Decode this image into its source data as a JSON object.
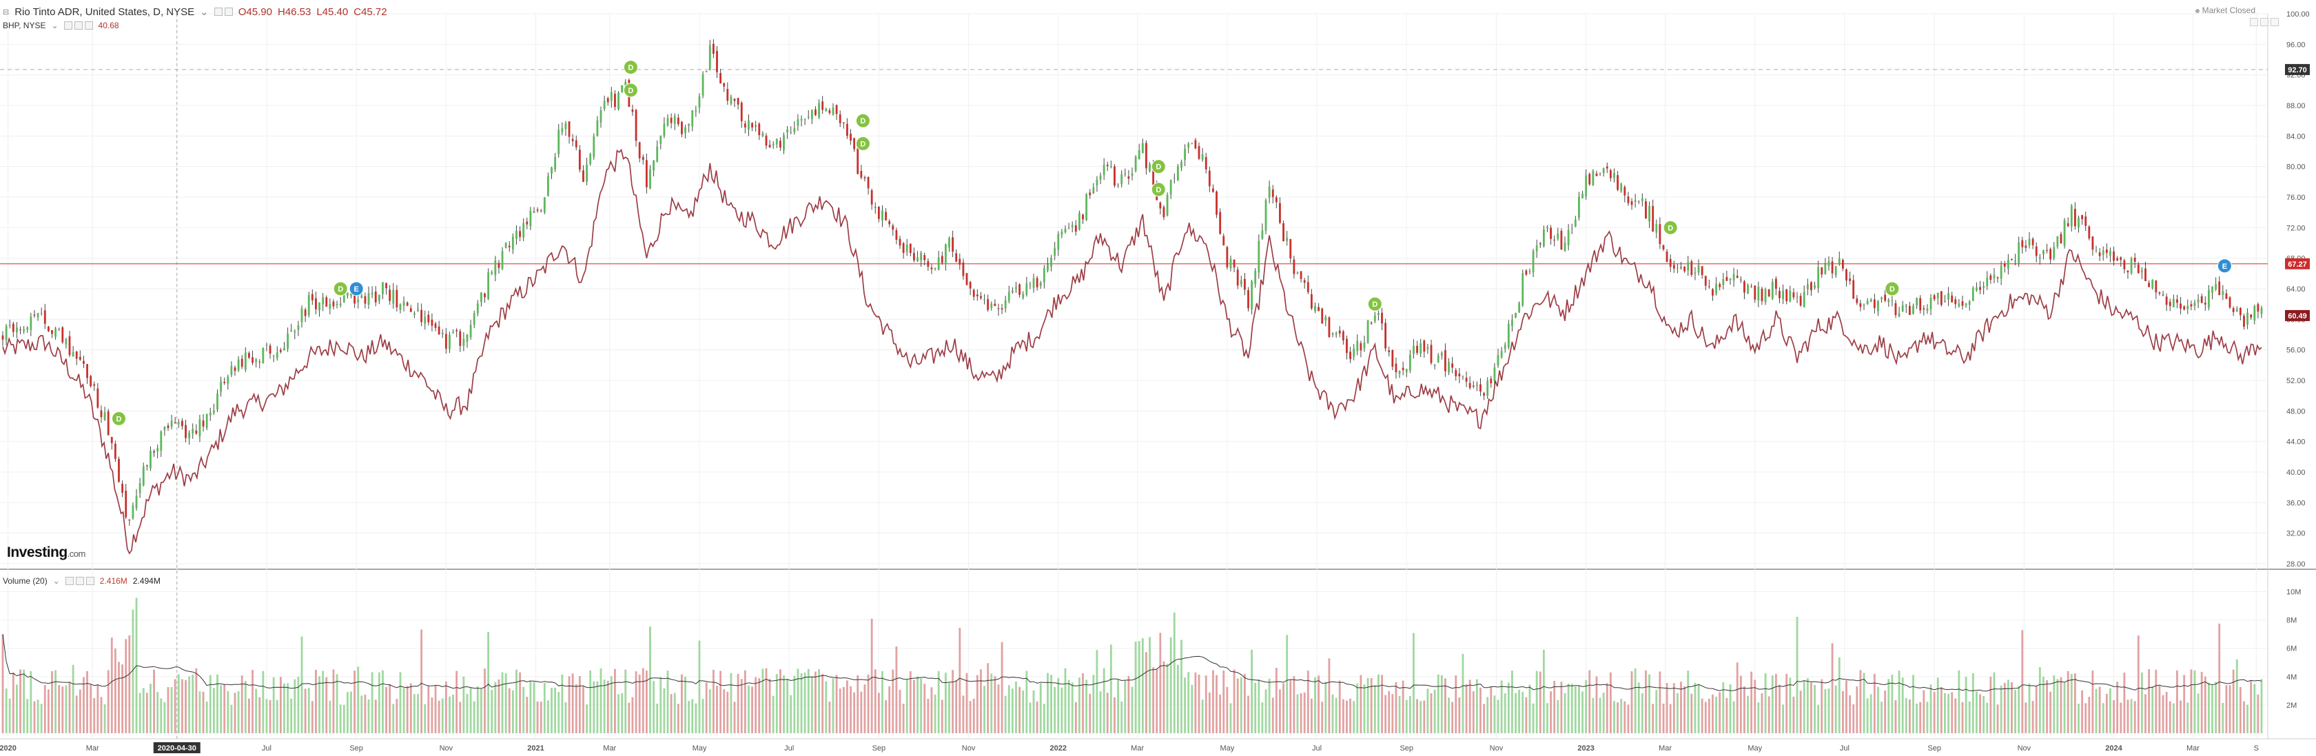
{
  "header": {
    "main_legend": {
      "title": "Rio Tinto ADR, United States, D, NYSE",
      "open": "O45.90",
      "high": "H46.53",
      "low": "L45.40",
      "close": "C45.72"
    },
    "compare_legend": {
      "title": "BHP, NYSE",
      "value": "40.68"
    },
    "market_status": "Market Closed"
  },
  "volume_legend": {
    "title": "Volume (20)",
    "value1": "2.416M",
    "value2": "2.494M"
  },
  "logo": {
    "text": "Investing",
    "suffix": ".com"
  },
  "colors": {
    "up": "#5cb85c",
    "down": "#c9302c",
    "vol_up": "#9fd89f",
    "vol_down": "#e2a1a1",
    "compare_line": "#9c3d45",
    "hline": "#e05252",
    "price_tag_dark": "#333333",
    "price_tag_red": "#cc2d2d",
    "dividend": "#84c341",
    "earnings": "#2f8fd6"
  },
  "chart_data": {
    "type": "line",
    "title": "",
    "ylim": [
      28,
      100
    ],
    "y_ticks": [
      "100.00",
      "96.00",
      "92.00",
      "88.00",
      "84.00",
      "80.00",
      "76.00",
      "72.00",
      "68.00",
      "64.00",
      "60.00",
      "56.00",
      "52.00",
      "48.00",
      "44.00",
      "40.00",
      "36.00",
      "32.00",
      "28.00"
    ],
    "x_labels": [
      "2020",
      "Mar",
      "2020-04-30",
      "Jul",
      "Sep",
      "Nov",
      "2021",
      "Mar",
      "May",
      "Jul",
      "Sep",
      "Nov",
      "2022",
      "Mar",
      "May",
      "Jul",
      "Sep",
      "Nov",
      "2023",
      "Mar",
      "May",
      "Jul",
      "Sep",
      "Nov",
      "2024",
      "Mar",
      "S"
    ],
    "x_label_idx": [
      0.5,
      8.5,
      16.5,
      25,
      33.5,
      42,
      50.5,
      57.5,
      66,
      74.5,
      83,
      91.5,
      100,
      107.5,
      116,
      124.5,
      133,
      141.5,
      150,
      157.5,
      166,
      174.5,
      183,
      191.5,
      200,
      207.5,
      213.5
    ],
    "n_weeks": 215,
    "price_labels": {
      "ref_dashed": "92.70",
      "hline": "67.27",
      "last": "60.49"
    },
    "ref_dashed_value": 92.7,
    "hline_value": 67.27,
    "last_value": 60.49,
    "series": [
      {
        "name": "Rio Tinto ADR",
        "anchors": [
          [
            0,
            58
          ],
          [
            4,
            60
          ],
          [
            6,
            57
          ],
          [
            8,
            53
          ],
          [
            10,
            46
          ],
          [
            12,
            33
          ],
          [
            14,
            43
          ],
          [
            16,
            46
          ],
          [
            18,
            45
          ],
          [
            20,
            49
          ],
          [
            22,
            54
          ],
          [
            26,
            56
          ],
          [
            29,
            62
          ],
          [
            32,
            63
          ],
          [
            34,
            62
          ],
          [
            36,
            64
          ],
          [
            40,
            60
          ],
          [
            42,
            57
          ],
          [
            44,
            58
          ],
          [
            46,
            65
          ],
          [
            48,
            70
          ],
          [
            51,
            75
          ],
          [
            53,
            86
          ],
          [
            55,
            79
          ],
          [
            57,
            88
          ],
          [
            59,
            90
          ],
          [
            61,
            78
          ],
          [
            63,
            86
          ],
          [
            65,
            85
          ],
          [
            67,
            95
          ],
          [
            69,
            88
          ],
          [
            71,
            85
          ],
          [
            73,
            82
          ],
          [
            76,
            86
          ],
          [
            78,
            88
          ],
          [
            80,
            84
          ],
          [
            82,
            76
          ],
          [
            84,
            72
          ],
          [
            86,
            68
          ],
          [
            88,
            67
          ],
          [
            90,
            70
          ],
          [
            92,
            62
          ],
          [
            94,
            61
          ],
          [
            96,
            64
          ],
          [
            98,
            65
          ],
          [
            100,
            70
          ],
          [
            102,
            73
          ],
          [
            104,
            80
          ],
          [
            106,
            78
          ],
          [
            108,
            82
          ],
          [
            110,
            74
          ],
          [
            112,
            83
          ],
          [
            114,
            80
          ],
          [
            116,
            68
          ],
          [
            118,
            62
          ],
          [
            120,
            78
          ],
          [
            122,
            68
          ],
          [
            124,
            62
          ],
          [
            126,
            58
          ],
          [
            128,
            55
          ],
          [
            130,
            61
          ],
          [
            132,
            53
          ],
          [
            134,
            56
          ],
          [
            136,
            55
          ],
          [
            138,
            53
          ],
          [
            140,
            50
          ],
          [
            142,
            55
          ],
          [
            144,
            65
          ],
          [
            146,
            72
          ],
          [
            148,
            70
          ],
          [
            150,
            78
          ],
          [
            152,
            80
          ],
          [
            154,
            76
          ],
          [
            156,
            74
          ],
          [
            158,
            66
          ],
          [
            160,
            67
          ],
          [
            162,
            64
          ],
          [
            164,
            65
          ],
          [
            166,
            63
          ],
          [
            168,
            64
          ],
          [
            170,
            62
          ],
          [
            172,
            66
          ],
          [
            174,
            67
          ],
          [
            176,
            62
          ],
          [
            178,
            63
          ],
          [
            180,
            61
          ],
          [
            182,
            62
          ],
          [
            184,
            63
          ],
          [
            186,
            62
          ],
          [
            188,
            65
          ],
          [
            190,
            68
          ],
          [
            192,
            70
          ],
          [
            194,
            68
          ],
          [
            196,
            74
          ],
          [
            198,
            70
          ],
          [
            200,
            68
          ],
          [
            202,
            67
          ],
          [
            204,
            64
          ],
          [
            206,
            62
          ],
          [
            208,
            62
          ],
          [
            210,
            64
          ],
          [
            212,
            60
          ],
          [
            214,
            61
          ]
        ]
      },
      {
        "name": "BHP",
        "anchors": [
          [
            0,
            56
          ],
          [
            4,
            57
          ],
          [
            6,
            54
          ],
          [
            8,
            50
          ],
          [
            10,
            42
          ],
          [
            12,
            30
          ],
          [
            14,
            37
          ],
          [
            16,
            40
          ],
          [
            18,
            39
          ],
          [
            20,
            43
          ],
          [
            22,
            48
          ],
          [
            26,
            50
          ],
          [
            29,
            55
          ],
          [
            32,
            57
          ],
          [
            34,
            55
          ],
          [
            36,
            57
          ],
          [
            40,
            52
          ],
          [
            42,
            48
          ],
          [
            44,
            49
          ],
          [
            46,
            58
          ],
          [
            48,
            62
          ],
          [
            51,
            66
          ],
          [
            53,
            70
          ],
          [
            55,
            65
          ],
          [
            57,
            79
          ],
          [
            59,
            82
          ],
          [
            61,
            68
          ],
          [
            63,
            75
          ],
          [
            65,
            73
          ],
          [
            67,
            80
          ],
          [
            69,
            74
          ],
          [
            71,
            73
          ],
          [
            73,
            70
          ],
          [
            76,
            74
          ],
          [
            78,
            76
          ],
          [
            80,
            72
          ],
          [
            82,
            62
          ],
          [
            84,
            58
          ],
          [
            86,
            54
          ],
          [
            88,
            55
          ],
          [
            90,
            57
          ],
          [
            92,
            53
          ],
          [
            94,
            52
          ],
          [
            96,
            56
          ],
          [
            98,
            58
          ],
          [
            100,
            63
          ],
          [
            102,
            65
          ],
          [
            104,
            71
          ],
          [
            106,
            67
          ],
          [
            108,
            73
          ],
          [
            110,
            62
          ],
          [
            112,
            72
          ],
          [
            114,
            70
          ],
          [
            116,
            60
          ],
          [
            118,
            55
          ],
          [
            120,
            70
          ],
          [
            122,
            60
          ],
          [
            124,
            52
          ],
          [
            126,
            48
          ],
          [
            128,
            50
          ],
          [
            130,
            56
          ],
          [
            132,
            49
          ],
          [
            134,
            51
          ],
          [
            136,
            50
          ],
          [
            138,
            48
          ],
          [
            140,
            47
          ],
          [
            142,
            53
          ],
          [
            144,
            60
          ],
          [
            146,
            63
          ],
          [
            148,
            61
          ],
          [
            150,
            66
          ],
          [
            152,
            71
          ],
          [
            154,
            67
          ],
          [
            156,
            65
          ],
          [
            158,
            58
          ],
          [
            160,
            60
          ],
          [
            162,
            56
          ],
          [
            164,
            60
          ],
          [
            166,
            56
          ],
          [
            168,
            60
          ],
          [
            170,
            55
          ],
          [
            172,
            59
          ],
          [
            174,
            60
          ],
          [
            176,
            56
          ],
          [
            178,
            57
          ],
          [
            180,
            54
          ],
          [
            182,
            58
          ],
          [
            184,
            56
          ],
          [
            186,
            55
          ],
          [
            188,
            59
          ],
          [
            190,
            62
          ],
          [
            192,
            63
          ],
          [
            194,
            61
          ],
          [
            196,
            69
          ],
          [
            198,
            64
          ],
          [
            200,
            61
          ],
          [
            202,
            60
          ],
          [
            204,
            57
          ],
          [
            206,
            57
          ],
          [
            208,
            56
          ],
          [
            210,
            58
          ],
          [
            212,
            55
          ],
          [
            214,
            57
          ]
        ]
      }
    ],
    "volume": {
      "ylim": [
        0,
        11000000
      ],
      "ticks": [
        "10M",
        "8M",
        "6M",
        "4M",
        "2M"
      ],
      "tick_values": [
        10000000,
        8000000,
        6000000,
        4000000,
        2000000
      ]
    },
    "markers": [
      {
        "type": "D",
        "week": 11,
        "value": 47
      },
      {
        "type": "D",
        "week": 32,
        "value": 64
      },
      {
        "type": "E",
        "week": 33.5,
        "value": 64
      },
      {
        "type": "D",
        "week": 59.5,
        "value": 93
      },
      {
        "type": "D",
        "week": 59.5,
        "value": 90
      },
      {
        "type": "D",
        "week": 81.5,
        "value": 86
      },
      {
        "type": "D",
        "week": 81.5,
        "value": 83
      },
      {
        "type": "D",
        "week": 109.5,
        "value": 80
      },
      {
        "type": "D",
        "week": 109.5,
        "value": 77
      },
      {
        "type": "D",
        "week": 130,
        "value": 62
      },
      {
        "type": "D",
        "week": 158,
        "value": 72
      },
      {
        "type": "D",
        "week": 179,
        "value": 64
      },
      {
        "type": "E",
        "week": 210.5,
        "value": 67
      }
    ]
  }
}
